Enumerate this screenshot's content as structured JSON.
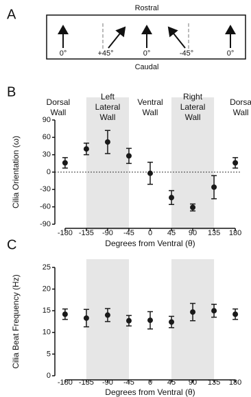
{
  "diagram": {
    "panel": "A",
    "top_label": "Rostral",
    "bottom_label": "Caudal",
    "angles": [
      "0°",
      "+45°",
      "0°",
      "-45°",
      "0°"
    ]
  },
  "chart_data": [
    {
      "type": "scatter",
      "panel": "B",
      "region_labels": [
        [
          "Dorsal",
          "Wall"
        ],
        [
          "Left",
          "Lateral",
          "Wall"
        ],
        [
          "Ventral",
          "Wall"
        ],
        [
          "Right",
          "Lateral",
          "Wall"
        ],
        [
          "Dorsa",
          "Wall"
        ]
      ],
      "shaded_regions": [
        [
          -135,
          -45
        ],
        [
          45,
          135
        ]
      ],
      "reference_line": 0,
      "x": [
        -180,
        -135,
        -90,
        -45,
        0,
        45,
        90,
        135,
        180
      ],
      "values": [
        16,
        40,
        52,
        28,
        -2,
        -44,
        -61,
        -26,
        16
      ],
      "errors": [
        9,
        10,
        20,
        13,
        19,
        12,
        6,
        20,
        9
      ],
      "xlim": [
        -190,
        190
      ],
      "xticks": [
        -180,
        -135,
        -90,
        -45,
        0,
        45,
        90,
        135,
        180
      ],
      "ylim": [
        -90,
        90
      ],
      "yticks": [
        -90,
        -60,
        -30,
        0,
        30,
        60,
        90
      ],
      "xlabel": "Degrees from Ventral (θ)",
      "ylabel": "Cilia Orientation (ω)",
      "color": "#1a1a1a"
    },
    {
      "type": "scatter",
      "panel": "C",
      "shaded_regions": [
        [
          -135,
          -45
        ],
        [
          45,
          135
        ]
      ],
      "x": [
        -180,
        -135,
        -90,
        -45,
        0,
        45,
        90,
        135,
        180
      ],
      "values": [
        14.2,
        13.3,
        14,
        12.7,
        12.8,
        12.4,
        14.7,
        15,
        14.2
      ],
      "errors": [
        1.2,
        2,
        1.5,
        1.2,
        2,
        1.3,
        2,
        1.5,
        1.2
      ],
      "xlim": [
        -190,
        190
      ],
      "xticks": [
        -180,
        -135,
        -90,
        -45,
        0,
        45,
        90,
        135,
        180
      ],
      "ylim": [
        0,
        25
      ],
      "yticks": [
        0,
        5,
        10,
        15,
        20,
        25
      ],
      "xlabel": "Degrees from Ventral (θ)",
      "ylabel": "Cilia Beat Frequency (Hz)",
      "color": "#1a1a1a"
    }
  ]
}
